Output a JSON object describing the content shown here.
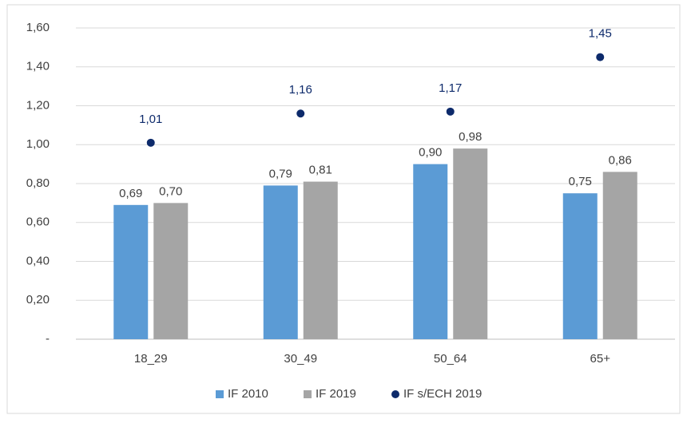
{
  "chart_data": {
    "type": "bar",
    "categories": [
      "18_29",
      "30_49",
      "50_64",
      "65+"
    ],
    "series": [
      {
        "name": "IF 2010",
        "type": "bar",
        "color": "#5b9bd5",
        "values": [
          0.69,
          0.79,
          0.9,
          0.75
        ],
        "value_labels": [
          "0,69",
          "0,79",
          "0,90",
          "0,75"
        ]
      },
      {
        "name": "IF 2019",
        "type": "bar",
        "color": "#a5a5a5",
        "values": [
          0.7,
          0.81,
          0.98,
          0.86
        ],
        "value_labels": [
          "0,70",
          "0,81",
          "0,98",
          "0,86"
        ]
      },
      {
        "name": "IF s/ECH 2019",
        "type": "scatter",
        "color": "#0d2a6b",
        "values": [
          1.01,
          1.16,
          1.17,
          1.45
        ],
        "value_labels": [
          "1,01",
          "1,16",
          "1,17",
          "1,45"
        ]
      }
    ],
    "ylim": [
      0,
      1.6
    ],
    "yticks": [
      {
        "value": 0,
        "label": "-"
      },
      {
        "value": 0.2,
        "label": "0,20"
      },
      {
        "value": 0.4,
        "label": "0,40"
      },
      {
        "value": 0.6,
        "label": "0,60"
      },
      {
        "value": 0.8,
        "label": "0,80"
      },
      {
        "value": 1.0,
        "label": "1,00"
      },
      {
        "value": 1.2,
        "label": "1,20"
      },
      {
        "value": 1.4,
        "label": "1,40"
      },
      {
        "value": 1.6,
        "label": "1,60"
      }
    ],
    "grid": true,
    "legend": "bottom"
  }
}
